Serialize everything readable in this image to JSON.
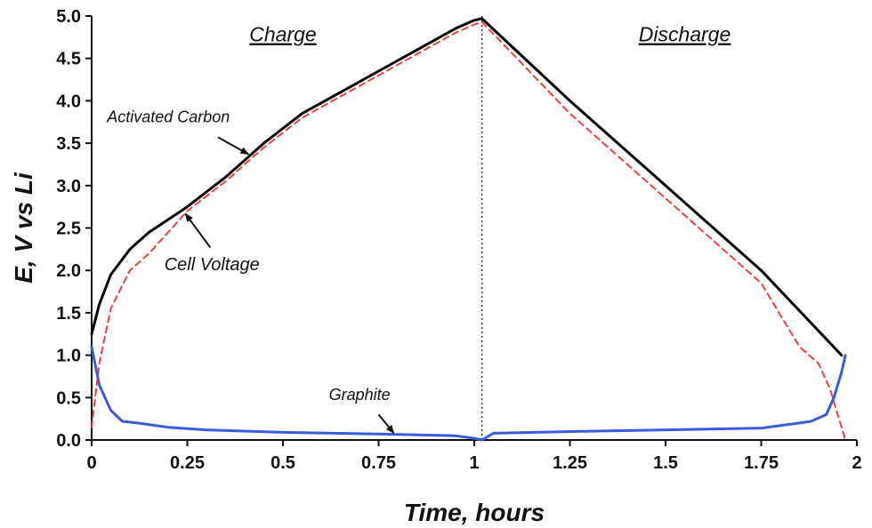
{
  "chart_data": {
    "type": "line",
    "title": "",
    "xlabel": "Time, hours",
    "ylabel": "E, V vs Li",
    "xlim": [
      0,
      2
    ],
    "ylim": [
      0,
      5
    ],
    "x_ticks": [
      0,
      0.25,
      0.5,
      0.75,
      1,
      1.25,
      1.5,
      1.75,
      2
    ],
    "x_tick_labels": [
      "0",
      "0.25",
      "0.5",
      "0.75",
      "1",
      "1.25",
      "1.5",
      "1.75",
      "2"
    ],
    "y_ticks": [
      0,
      0.5,
      1,
      1.5,
      2,
      2.5,
      3,
      3.5,
      4,
      4.5,
      5
    ],
    "y_tick_labels": [
      "0.0",
      "0.5",
      "1.0",
      "1.5",
      "2.0",
      "2.5",
      "3.0",
      "3.5",
      "4.0",
      "4.5",
      "5.0"
    ],
    "region_labels": [
      {
        "text": "Charge",
        "x": 0.5,
        "y": 4.7
      },
      {
        "text": "Discharge",
        "x": 1.55,
        "y": 4.7
      }
    ],
    "divider": {
      "x": 1.02,
      "style": "dotted"
    },
    "series": [
      {
        "name": "Activated Carbon",
        "color": "#000000",
        "dash": "solid",
        "points": [
          [
            0,
            1.25
          ],
          [
            0.02,
            1.6
          ],
          [
            0.05,
            1.95
          ],
          [
            0.1,
            2.25
          ],
          [
            0.15,
            2.45
          ],
          [
            0.2,
            2.6
          ],
          [
            0.25,
            2.75
          ],
          [
            0.35,
            3.1
          ],
          [
            0.45,
            3.5
          ],
          [
            0.55,
            3.85
          ],
          [
            0.65,
            4.1
          ],
          [
            0.75,
            4.35
          ],
          [
            0.85,
            4.6
          ],
          [
            0.95,
            4.85
          ],
          [
            1.0,
            4.95
          ],
          [
            1.02,
            4.97
          ],
          [
            1.25,
            4.0
          ],
          [
            1.5,
            3.0
          ],
          [
            1.75,
            2.0
          ],
          [
            1.96,
            1.0
          ]
        ]
      },
      {
        "name": "Cell Voltage",
        "color": "#e8413f",
        "dash": "dashed",
        "points": [
          [
            0,
            0.15
          ],
          [
            0.02,
            0.9
          ],
          [
            0.05,
            1.55
          ],
          [
            0.1,
            2.0
          ],
          [
            0.15,
            2.2
          ],
          [
            0.2,
            2.45
          ],
          [
            0.25,
            2.7
          ],
          [
            0.35,
            3.05
          ],
          [
            0.45,
            3.45
          ],
          [
            0.55,
            3.8
          ],
          [
            0.65,
            4.05
          ],
          [
            0.75,
            4.3
          ],
          [
            0.85,
            4.55
          ],
          [
            0.95,
            4.8
          ],
          [
            1.0,
            4.9
          ],
          [
            1.02,
            4.93
          ],
          [
            1.25,
            3.85
          ],
          [
            1.5,
            2.85
          ],
          [
            1.75,
            1.85
          ],
          [
            1.85,
            1.1
          ],
          [
            1.9,
            0.9
          ],
          [
            1.93,
            0.6
          ],
          [
            1.95,
            0.3
          ],
          [
            1.97,
            0.0
          ]
        ]
      },
      {
        "name": "Graphite",
        "color": "#3b5bdb",
        "dash": "solid",
        "points": [
          [
            0,
            1.1
          ],
          [
            0.02,
            0.65
          ],
          [
            0.05,
            0.35
          ],
          [
            0.08,
            0.22
          ],
          [
            0.12,
            0.2
          ],
          [
            0.2,
            0.15
          ],
          [
            0.3,
            0.12
          ],
          [
            0.5,
            0.09
          ],
          [
            0.75,
            0.07
          ],
          [
            0.95,
            0.05
          ],
          [
            1.0,
            0.02
          ],
          [
            1.02,
            0.0
          ],
          [
            1.05,
            0.08
          ],
          [
            1.25,
            0.1
          ],
          [
            1.5,
            0.12
          ],
          [
            1.75,
            0.14
          ],
          [
            1.85,
            0.2
          ],
          [
            1.88,
            0.22
          ],
          [
            1.92,
            0.3
          ],
          [
            1.94,
            0.5
          ],
          [
            1.96,
            0.8
          ],
          [
            1.97,
            1.0
          ]
        ]
      }
    ],
    "annotations": [
      {
        "text": "Activated Carbon",
        "target_series": "Activated Carbon",
        "text_at": [
          0.04,
          3.75
        ],
        "arrow_to": [
          0.41,
          3.37
        ],
        "arrow_from": [
          0.33,
          3.57
        ]
      },
      {
        "text": "Cell Voltage",
        "target_series": "Cell Voltage",
        "text_at": [
          0.19,
          2.0
        ],
        "arrow_to": [
          0.245,
          2.67
        ],
        "arrow_from": [
          0.31,
          2.27
        ]
      },
      {
        "text": "Graphite",
        "target_series": "Graphite",
        "text_at": [
          0.62,
          0.47
        ],
        "arrow_to": [
          0.79,
          0.08
        ],
        "arrow_from": [
          0.75,
          0.3
        ]
      }
    ]
  }
}
